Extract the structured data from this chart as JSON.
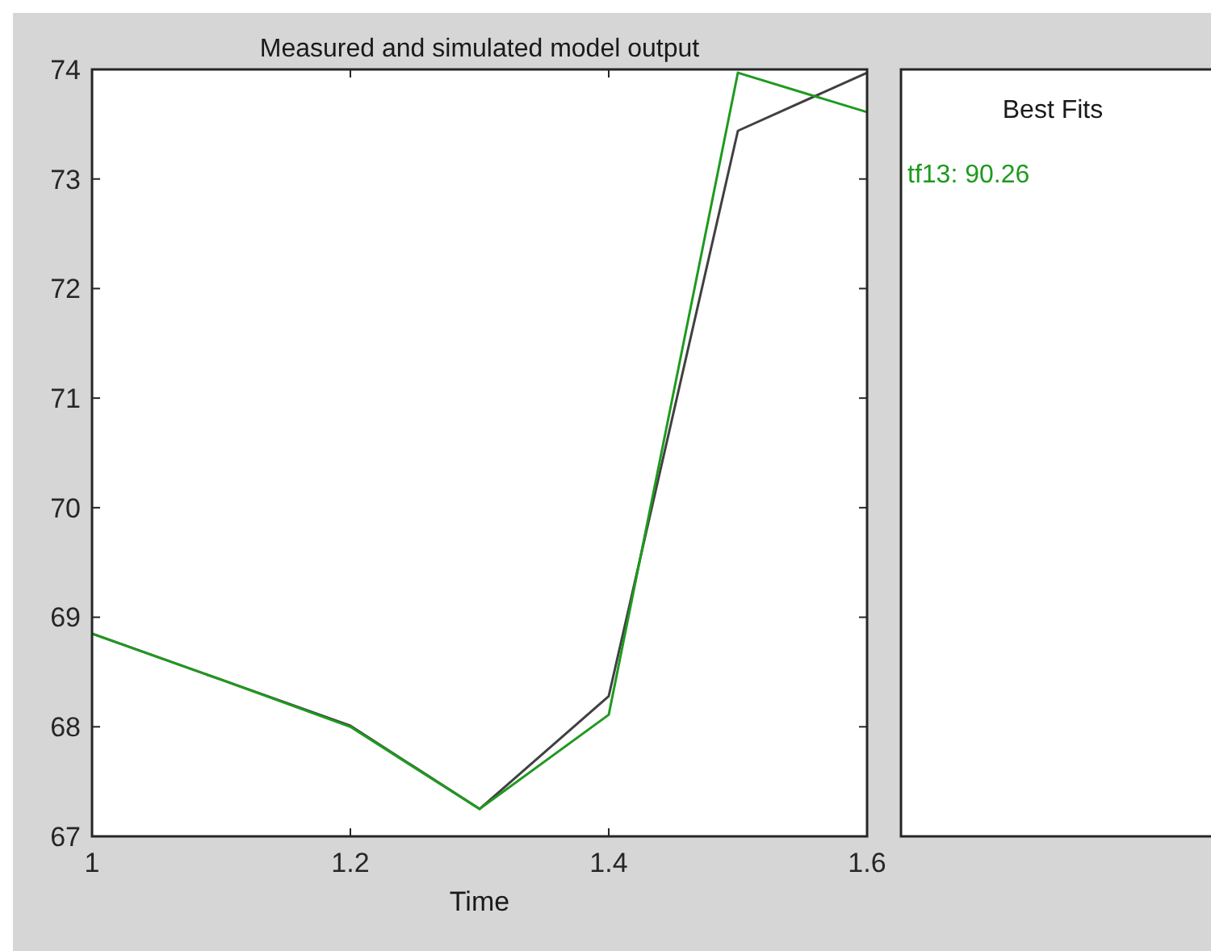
{
  "chart_data": {
    "type": "line",
    "title": "Measured and simulated model output",
    "xlabel": "Time",
    "legend_title": "Best Fits",
    "legend": "right",
    "grid": false,
    "x": [
      1,
      1.1,
      1.2,
      1.3,
      1.4,
      1.5,
      1.6
    ],
    "series": [
      {
        "color": "#404040",
        "values": [
          68.85,
          68.43,
          68.01,
          67.25,
          68.28,
          73.44,
          73.97
        ]
      },
      {
        "name": "tf13: 90.26",
        "color": "#1f9a1f",
        "values": [
          68.85,
          68.43,
          68.0,
          67.25,
          68.11,
          73.97,
          73.61
        ]
      }
    ],
    "xlim": [
      1,
      1.6
    ],
    "xticks": [
      1,
      {
        "value": 1.2,
        "label": "1.2"
      },
      {
        "value": 1.4,
        "label": "1.4"
      },
      {
        "value": 1.6,
        "label": "1.6"
      }
    ],
    "ylim": [
      67,
      74
    ],
    "yticks": [
      67,
      68,
      69,
      70,
      71,
      72,
      73,
      74
    ]
  }
}
